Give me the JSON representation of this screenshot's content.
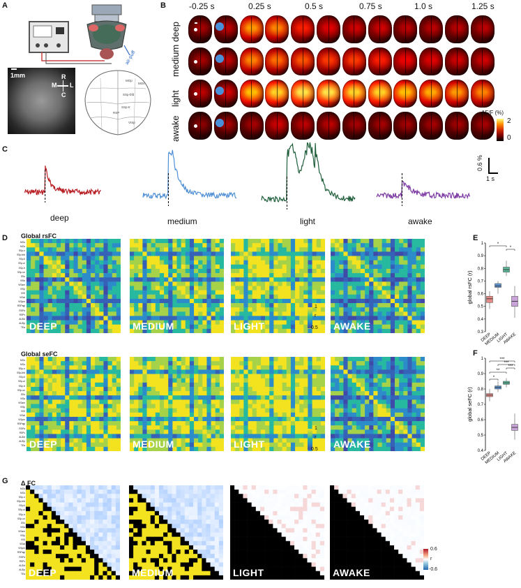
{
  "panel_letters": [
    "A",
    "B",
    "C",
    "D",
    "E",
    "F",
    "G"
  ],
  "panelA": {
    "scale_bar": "1mm",
    "orientation": {
      "R": "R",
      "L": "L",
      "M": "M",
      "C": "C"
    },
    "airpuff_label": "air-puff",
    "atlas_labels": [
      "MOp",
      "MOs",
      "SSp-bfd",
      "SSp-tr",
      "VISp",
      "RSP"
    ]
  },
  "panelB": {
    "time_labels": [
      "-0.25 s",
      "0.25 s",
      "0.5 s",
      "0.75 s",
      "1.0 s",
      "1.25 s"
    ],
    "rows": [
      {
        "label": "deep",
        "intensity": [
          0.25,
          0.3,
          0.75,
          0.7,
          0.5,
          0.4,
          0.35,
          0.35,
          0.3,
          0.3,
          0.3,
          0.3
        ]
      },
      {
        "label": "medium",
        "intensity": [
          0.25,
          0.3,
          0.7,
          0.65,
          0.6,
          0.55,
          0.55,
          0.5,
          0.45,
          0.4,
          0.35,
          0.35
        ]
      },
      {
        "label": "light",
        "intensity": [
          0.3,
          0.35,
          0.85,
          0.9,
          0.95,
          0.95,
          0.9,
          0.9,
          0.85,
          0.8,
          0.75,
          0.7
        ]
      },
      {
        "label": "awake",
        "intensity": [
          0.2,
          0.25,
          0.25,
          0.35,
          0.3,
          0.3,
          0.25,
          0.25,
          0.25,
          0.25,
          0.25,
          0.25
        ]
      }
    ],
    "colorbar": {
      "title": "ΔF/F (%)",
      "max": "2",
      "min": "0"
    }
  },
  "panelC": {
    "traces": [
      {
        "label": "deep",
        "color": "#b81f25"
      },
      {
        "label": "medium",
        "color": "#4f8fd4"
      },
      {
        "label": "light",
        "color": "#1f5e3a"
      },
      {
        "label": "awake",
        "color": "#7d3aa3"
      }
    ],
    "scale_y": "0.6 %",
    "scale_x": "1 s"
  },
  "panelD": {
    "row1_title": "Global rsFC",
    "row2_title": "Global seFC",
    "matrix_labels": [
      "DEEP",
      "MEDIUM",
      "LIGHT",
      "AWAKE"
    ],
    "rs_levels": [
      0.62,
      0.7,
      0.82,
      0.6
    ],
    "se_levels": [
      0.78,
      0.8,
      0.86,
      0.58
    ],
    "colorbar": {
      "max": "1",
      "mid": "r",
      "min": "0.5"
    },
    "region_labels": [
      "MOs",
      "MOs",
      "SSp-n",
      "SSp-bfd",
      "SSp-ll",
      "SSp-ul",
      "SSp-tr",
      "SSp-un",
      "SSs",
      "VISa",
      "VISam",
      "VISp",
      "VISl",
      "VISal",
      "VISpm",
      "RSPagl",
      "RSPd",
      "RSPv",
      "AUDd",
      "AUDp",
      "TEa"
    ]
  },
  "panelE": {
    "ylabel": "global rsFC (r)",
    "ticks": [
      "0.3",
      "0.4",
      "0.5",
      "0.6",
      "0.7",
      "0.8",
      "0.9",
      "1"
    ],
    "groups": [
      "DEEP",
      "MEDIUM",
      "LIGHT",
      "AWAKE"
    ],
    "significance": [
      "*",
      "*"
    ],
    "chart_data": {
      "type": "box",
      "ylim": [
        0.3,
        1.0
      ],
      "categories": [
        "DEEP",
        "MEDIUM",
        "LIGHT",
        "AWAKE"
      ],
      "median": [
        0.56,
        0.66,
        0.79,
        0.54
      ],
      "q1": [
        0.53,
        0.65,
        0.77,
        0.5
      ],
      "q3": [
        0.58,
        0.68,
        0.81,
        0.58
      ],
      "whisker_low": [
        0.48,
        0.6,
        0.74,
        0.41
      ],
      "whisker_high": [
        0.62,
        0.7,
        0.86,
        0.66
      ],
      "colors": [
        "#e48a87",
        "#5f93cf",
        "#5fb89a",
        "#c9a4d8"
      ]
    }
  },
  "panelF": {
    "ylabel": "global seFC (r)",
    "ticks": [
      "0.4",
      "0.5",
      "0.6",
      "0.7",
      "0.8",
      "0.9",
      "1"
    ],
    "groups": [
      "DEEP",
      "MEDIUM",
      "LIGHT",
      "AWAKE"
    ],
    "significance": [
      "*",
      "**",
      "***",
      "***",
      "***"
    ],
    "chart_data": {
      "type": "box",
      "ylim": [
        0.4,
        1.0
      ],
      "categories": [
        "DEEP",
        "MEDIUM",
        "LIGHT",
        "AWAKE"
      ],
      "median": [
        0.76,
        0.81,
        0.84,
        0.55
      ],
      "q1": [
        0.75,
        0.8,
        0.83,
        0.53
      ],
      "q3": [
        0.77,
        0.82,
        0.85,
        0.57
      ],
      "whisker_low": [
        0.72,
        0.78,
        0.81,
        0.47
      ],
      "whisker_high": [
        0.8,
        0.85,
        0.87,
        0.64
      ],
      "colors": [
        "#e48a87",
        "#5f93cf",
        "#5fb89a",
        "#c9a4d8"
      ]
    }
  },
  "panelG": {
    "title": "Δ FC",
    "matrix_labels": [
      "DEEP",
      "MEDIUM",
      "LIGHT",
      "AWAKE"
    ],
    "colorbar": {
      "max": "0.6",
      "mid": "r",
      "min": "-0.6"
    }
  }
}
